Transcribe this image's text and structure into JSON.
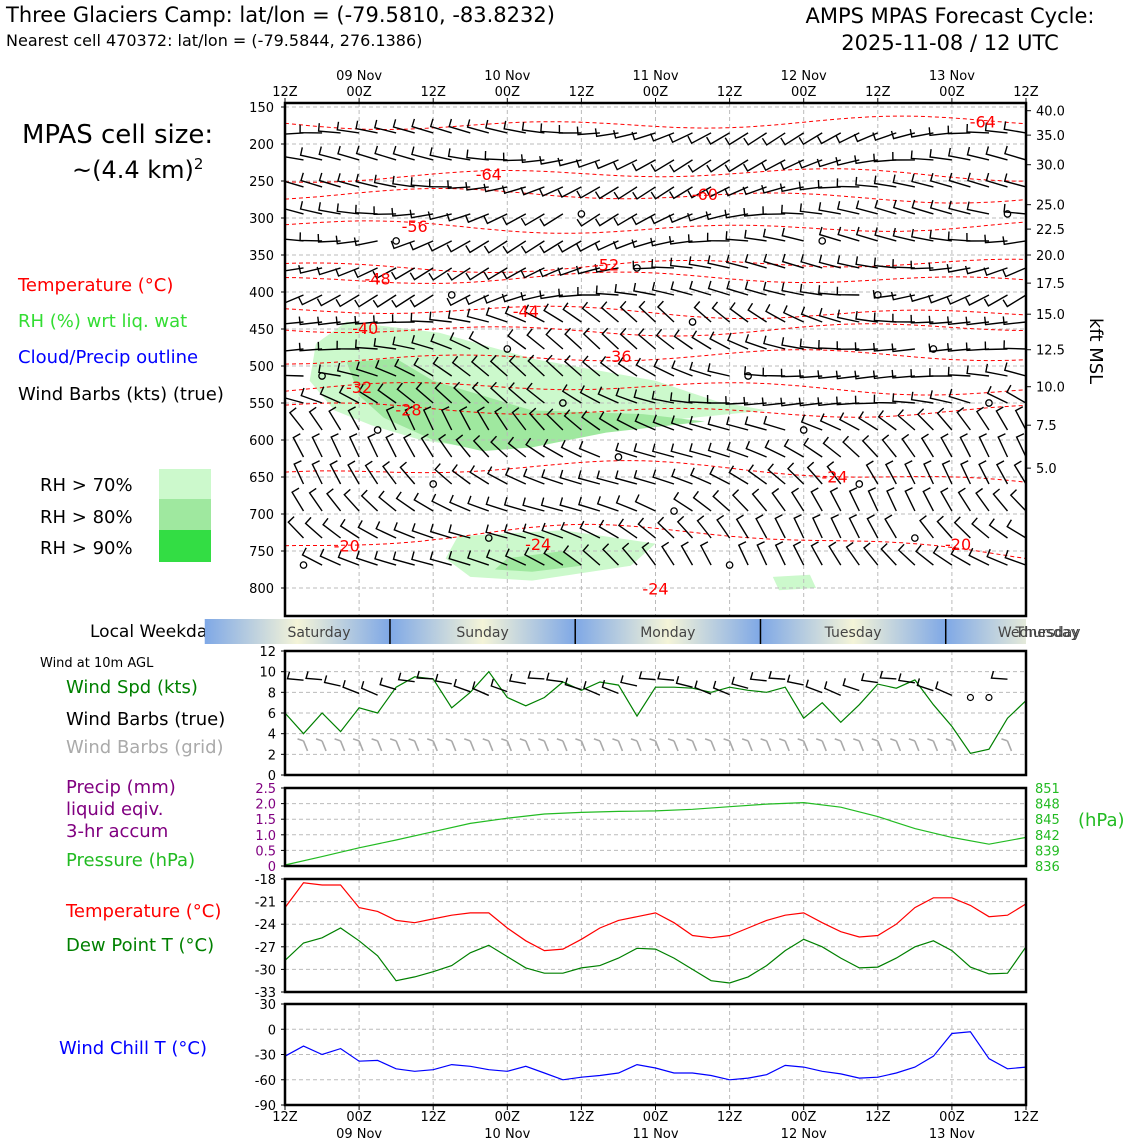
{
  "header": {
    "title_left": "Three Glaciers Camp: lat/lon = (-79.5810, -83.8232)",
    "subtitle_left": "Nearest cell 470372: lat/lon = (-79.5844, 276.1386)",
    "title_right_1": "AMPS MPAS Forecast Cycle:",
    "title_right_2": "2025-11-08 / 12 UTC"
  },
  "legend": {
    "cell_size_1": "MPAS cell size:",
    "cell_size_2": "~(4.4 km)",
    "cell_size_sup": "2",
    "temperature": "Temperature (°C)",
    "rh": "RH (%) wrt liq. wat",
    "cloud": "Cloud/Precip outline",
    "wind": "Wind Barbs (kts) (true)",
    "rh70": "RH > 70%",
    "rh80": "RH > 80%",
    "rh90": "RH > 90%",
    "colors": {
      "rh70": "#ccf9cc",
      "rh80": "#9fe89f",
      "rh90": "#33dd44",
      "temp": "#ff0000",
      "rh_text": "#33dd33",
      "cloud": "#0000ff"
    }
  },
  "side_labels": {
    "weekday_label": "Local Weekday",
    "wind10m": "Wind at 10m AGL",
    "wind_spd": "Wind Spd (kts)",
    "wind_barbs_true": "Wind Barbs (true)",
    "wind_barbs_grid": "Wind Barbs (grid)",
    "precip_1": "Precip (mm)",
    "precip_2": "liquid eqiv.",
    "precip_3": "3-hr accum",
    "pressure": "Pressure (hPa)",
    "hpa_unit": "(hPa)",
    "temperature": "Temperature (°C)",
    "dewpoint": "Dew Point T (°C)",
    "windchill": "Wind Chill T (°C)",
    "kft": "kft MSL"
  },
  "time_axis": {
    "hour_labels": [
      "12Z",
      "00Z",
      "12Z",
      "00Z",
      "12Z",
      "00Z",
      "12Z",
      "00Z",
      "12Z",
      "00Z",
      "12Z"
    ],
    "date_labels": [
      "09 Nov",
      "10 Nov",
      "11 Nov",
      "12 Nov",
      "13 Nov"
    ],
    "weekdays": [
      "Saturday",
      "Sunday",
      "Monday",
      "Tuesday",
      "Wednesday",
      "Thursday"
    ]
  },
  "chart_data": [
    {
      "type": "contour",
      "name": "upper-air cross section",
      "ylabel_left": "Pressure (hPa)",
      "ylabel_right": "kft MSL",
      "pressure_ticks": [
        150,
        200,
        250,
        300,
        350,
        400,
        450,
        500,
        550,
        600,
        650,
        700,
        750,
        800
      ],
      "kft_ticks": [
        {
          "kft": "40.0",
          "p": 155
        },
        {
          "kft": "35.0",
          "p": 188
        },
        {
          "kft": "30.0",
          "p": 228
        },
        {
          "kft": "25.0",
          "p": 282
        },
        {
          "kft": "22.5",
          "p": 315
        },
        {
          "kft": "20.0",
          "p": 350
        },
        {
          "kft": "17.5",
          "p": 388
        },
        {
          "kft": "15.0",
          "p": 430
        },
        {
          "kft": "12.5",
          "p": 478
        },
        {
          "kft": "10.0",
          "p": 528
        },
        {
          "kft": "7.5",
          "p": 580
        },
        {
          "kft": "5.0",
          "p": 638
        }
      ],
      "x_range_hours": [
        0,
        120
      ],
      "temperature_labels": [
        {
          "value": "-64",
          "t": 113,
          "p": 171
        },
        {
          "value": "-64",
          "t": 33,
          "p": 242
        },
        {
          "value": "-60",
          "t": 68,
          "p": 269
        },
        {
          "value": "-56",
          "t": 21,
          "p": 312
        },
        {
          "value": "-52",
          "t": 52,
          "p": 364
        },
        {
          "value": "-48",
          "t": 15,
          "p": 383
        },
        {
          "value": "-44",
          "t": 39,
          "p": 427
        },
        {
          "value": "-40",
          "t": 13,
          "p": 450
        },
        {
          "value": "-36",
          "t": 54,
          "p": 488
        },
        {
          "value": "-32",
          "t": 12,
          "p": 530
        },
        {
          "value": "-28",
          "t": 20,
          "p": 560
        },
        {
          "value": "-24",
          "t": 89,
          "p": 651
        },
        {
          "value": "-24",
          "t": 41,
          "p": 742
        },
        {
          "value": "-20",
          "t": 109,
          "p": 742
        },
        {
          "value": "-20",
          "t": 10,
          "p": 744
        },
        {
          "value": "-24",
          "t": 60,
          "p": 802
        }
      ]
    },
    {
      "type": "line",
      "name": "wind speed 10m",
      "ylabel": "Wind Spd (kts)",
      "ylim": [
        0,
        12
      ],
      "yticks": [
        0,
        2,
        4,
        6,
        8,
        10,
        12
      ],
      "hours": [
        0,
        3,
        6,
        9,
        12,
        15,
        18,
        21,
        24,
        27,
        30,
        33,
        36,
        39,
        42,
        45,
        48,
        51,
        54,
        57,
        60,
        63,
        66,
        69,
        72,
        75,
        78,
        81,
        84,
        87,
        90,
        93,
        96,
        99,
        102,
        105,
        108,
        111,
        114,
        117,
        120
      ],
      "values": [
        6,
        4,
        6,
        4.2,
        6.5,
        6,
        8.5,
        9.5,
        9.3,
        6.5,
        8,
        10,
        7.5,
        6.7,
        7.5,
        9,
        8.2,
        9,
        8.7,
        5.7,
        8.5,
        8.5,
        8.4,
        8,
        8.5,
        8.2,
        8,
        8.5,
        5.5,
        7,
        5.1,
        6.8,
        8.8,
        8.4,
        9.2,
        6.8,
        4.7,
        2.1,
        2.5,
        5.5,
        7.2
      ]
    },
    {
      "type": "line",
      "name": "surface pressure",
      "ylabel_left": "Precip (mm)",
      "ylabel_right": "Pressure (hPa)",
      "precip_ylim": [
        0,
        2.5
      ],
      "precip_ticks": [
        "0",
        "0.5",
        "1.0",
        "1.5",
        "2.0",
        "2.5"
      ],
      "pressure_ylim": [
        836,
        851
      ],
      "pressure_ticks": [
        "836",
        "839",
        "842",
        "845",
        "848",
        "851"
      ],
      "hours": [
        0,
        6,
        12,
        18,
        24,
        30,
        36,
        42,
        48,
        54,
        60,
        66,
        72,
        78,
        84,
        90,
        96,
        102,
        108,
        114,
        120
      ],
      "values": [
        836.2,
        837.8,
        839.5,
        841.0,
        842.6,
        844.2,
        845.2,
        846.0,
        846.3,
        846.5,
        846.6,
        846.9,
        847.4,
        847.9,
        848.2,
        847.3,
        845.5,
        843.2,
        841.5,
        840.2,
        841.5
      ]
    },
    {
      "type": "line",
      "name": "temperature and dew point",
      "ylim": [
        -33,
        -18
      ],
      "yticks": [
        -33,
        -30,
        -27,
        -24,
        -21,
        -18
      ],
      "hours": [
        0,
        3,
        6,
        9,
        12,
        15,
        18,
        21,
        24,
        27,
        30,
        33,
        36,
        39,
        42,
        45,
        48,
        51,
        54,
        57,
        60,
        63,
        66,
        69,
        72,
        75,
        78,
        81,
        84,
        87,
        90,
        93,
        96,
        99,
        102,
        105,
        108,
        111,
        114,
        117,
        120
      ],
      "series": [
        {
          "name": "Temperature",
          "color": "#ff0000",
          "values": [
            -21.8,
            -18.5,
            -18.8,
            -18.8,
            -21.8,
            -22.3,
            -23.5,
            -23.8,
            -23.3,
            -22.8,
            -22.5,
            -22.5,
            -24.5,
            -26.2,
            -27.5,
            -27.3,
            -26.0,
            -24.5,
            -23.5,
            -23.0,
            -22.5,
            -23.8,
            -25.5,
            -25.8,
            -25.5,
            -24.5,
            -23.5,
            -22.8,
            -22.5,
            -23.8,
            -25.0,
            -25.7,
            -25.5,
            -24.0,
            -21.8,
            -20.5,
            -20.5,
            -21.5,
            -23.0,
            -22.8,
            -21.3
          ]
        },
        {
          "name": "Dew Point",
          "color": "#008000",
          "values": [
            -28.8,
            -26.5,
            -25.8,
            -24.5,
            -26.2,
            -28.2,
            -31.5,
            -31.0,
            -30.3,
            -29.5,
            -27.8,
            -26.8,
            -28.3,
            -29.8,
            -30.5,
            -30.5,
            -29.8,
            -29.5,
            -28.5,
            -27.2,
            -27.3,
            -28.5,
            -30.0,
            -31.5,
            -31.8,
            -31.0,
            -29.5,
            -27.5,
            -26.0,
            -27.0,
            -28.5,
            -29.8,
            -29.7,
            -28.5,
            -27.0,
            -26.2,
            -27.5,
            -29.7,
            -30.6,
            -30.5,
            -27.0
          ]
        }
      ]
    },
    {
      "type": "line",
      "name": "wind chill",
      "ylim": [
        -90,
        30
      ],
      "yticks": [
        -90,
        -60,
        -30,
        0,
        30
      ],
      "hours": [
        0,
        3,
        6,
        9,
        12,
        15,
        18,
        21,
        24,
        27,
        30,
        33,
        36,
        39,
        42,
        45,
        48,
        51,
        54,
        57,
        60,
        63,
        66,
        69,
        72,
        75,
        78,
        81,
        84,
        87,
        90,
        93,
        96,
        99,
        102,
        105,
        108,
        111,
        114,
        117,
        120
      ],
      "values": [
        -32,
        -20,
        -30,
        -23,
        -38,
        -37,
        -47,
        -50,
        -48,
        -42,
        -44,
        -48,
        -50,
        -44,
        -52,
        -60,
        -57,
        -55,
        -52,
        -42,
        -46,
        -52,
        -52,
        -55,
        -60,
        -58,
        -54,
        -43,
        -45,
        -50,
        -53,
        -58,
        -57,
        -52,
        -45,
        -32,
        -5,
        -3,
        -35,
        -47,
        -45
      ]
    }
  ]
}
